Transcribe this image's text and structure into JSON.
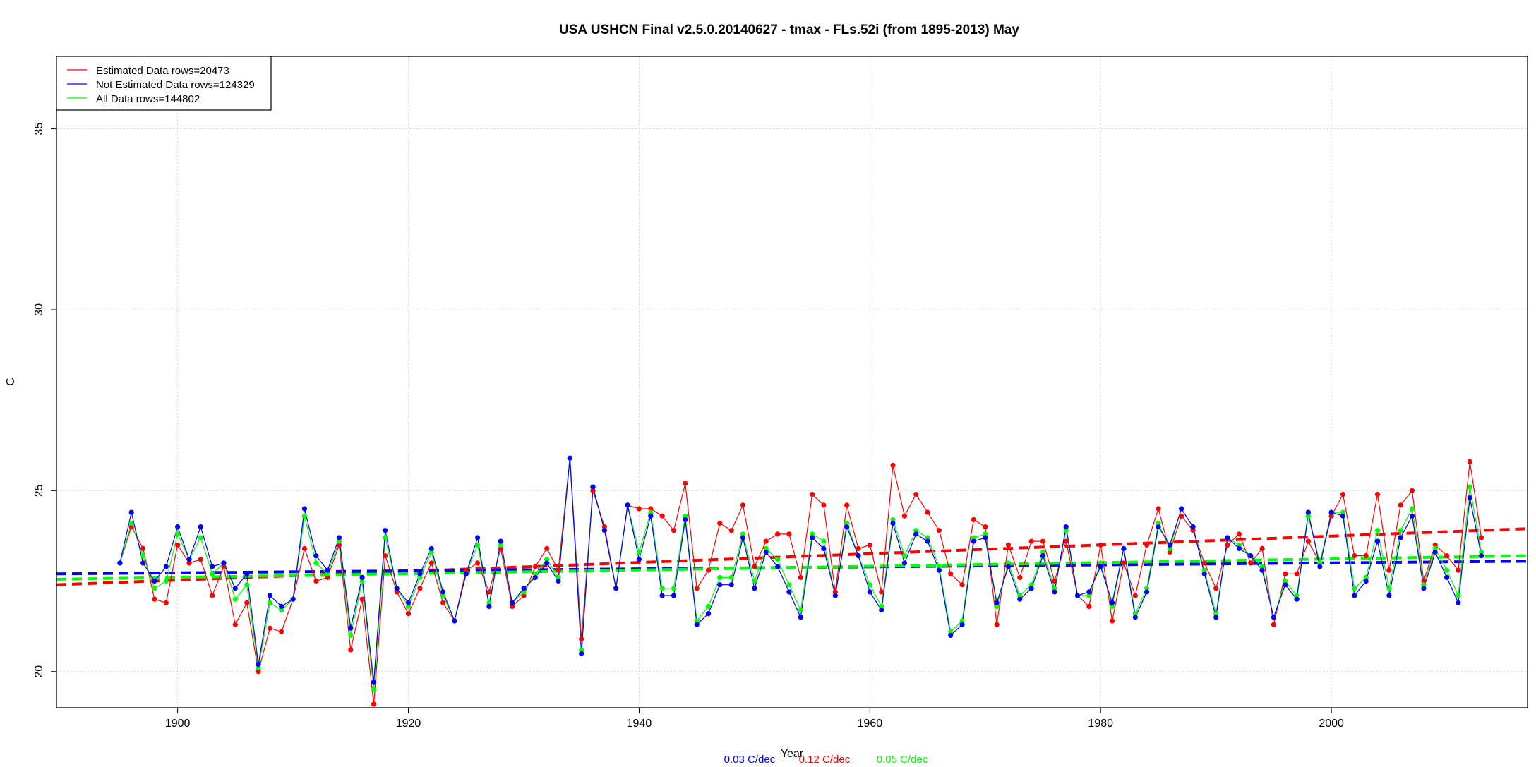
{
  "colors": {
    "estimated": "#ff0000",
    "not_estimated": "#0000ff",
    "all": "#00ff00",
    "grid": "#d3d3d3"
  },
  "chart_data": {
    "type": "line",
    "title": "USA USHCN Final v2.5.0.20140627 - tmax - FLs.52i (from 1895-2013) May",
    "xlabel": "Year",
    "ylabel": "C",
    "xlim": [
      1889.5,
      2017
    ],
    "ylim": [
      19,
      37
    ],
    "x_ticks": [
      1900,
      1920,
      1940,
      1960,
      1980,
      2000
    ],
    "y_ticks": [
      20,
      25,
      30,
      35
    ],
    "grid": true,
    "legend_position": "top-left",
    "x": [
      1895,
      1896,
      1897,
      1898,
      1899,
      1900,
      1901,
      1902,
      1903,
      1904,
      1905,
      1906,
      1907,
      1908,
      1909,
      1910,
      1911,
      1912,
      1913,
      1914,
      1915,
      1916,
      1917,
      1918,
      1919,
      1920,
      1921,
      1922,
      1923,
      1924,
      1925,
      1926,
      1927,
      1928,
      1929,
      1930,
      1931,
      1932,
      1933,
      1934,
      1935,
      1936,
      1937,
      1938,
      1939,
      1940,
      1941,
      1942,
      1943,
      1944,
      1945,
      1946,
      1947,
      1948,
      1949,
      1950,
      1951,
      1952,
      1953,
      1954,
      1955,
      1956,
      1957,
      1958,
      1959,
      1960,
      1961,
      1962,
      1963,
      1964,
      1965,
      1966,
      1967,
      1968,
      1969,
      1970,
      1971,
      1972,
      1973,
      1974,
      1975,
      1976,
      1977,
      1978,
      1979,
      1980,
      1981,
      1982,
      1983,
      1984,
      1985,
      1986,
      1987,
      1988,
      1989,
      1990,
      1991,
      1992,
      1993,
      1994,
      1995,
      1996,
      1997,
      1998,
      1999,
      2000,
      2001,
      2002,
      2003,
      2004,
      2005,
      2006,
      2007,
      2008,
      2009,
      2010,
      2011,
      2012,
      2013
    ],
    "series": [
      {
        "name": "Estimated Data rows=20473",
        "color": "#ff0000",
        "values": [
          23.0,
          24.0,
          23.4,
          22.0,
          21.9,
          23.5,
          23.0,
          23.1,
          22.1,
          22.9,
          21.3,
          21.9,
          20.0,
          21.2,
          21.1,
          22.0,
          23.4,
          22.5,
          22.6,
          23.5,
          20.6,
          22.0,
          19.1,
          23.2,
          22.2,
          21.6,
          22.3,
          23.0,
          21.9,
          21.4,
          22.8,
          23.0,
          22.2,
          23.4,
          21.8,
          22.1,
          22.9,
          23.4,
          22.8,
          25.9,
          20.9,
          25.0,
          24.0,
          22.3,
          24.6,
          24.5,
          24.5,
          24.3,
          23.9,
          25.2,
          22.3,
          22.8,
          24.1,
          23.9,
          24.6,
          22.9,
          23.6,
          23.8,
          23.8,
          22.6,
          24.9,
          24.6,
          22.2,
          24.6,
          23.4,
          23.5,
          22.2,
          25.7,
          24.3,
          24.9,
          24.4,
          23.9,
          22.7,
          22.4,
          24.2,
          24.0,
          21.3,
          23.5,
          22.6,
          23.6,
          23.6,
          22.5,
          23.6,
          22.1,
          21.8,
          23.5,
          21.4,
          23.0,
          22.1,
          23.5,
          24.5,
          23.3,
          24.3,
          23.9,
          23.0,
          22.3,
          23.5,
          23.8,
          23.0,
          23.4,
          21.3,
          22.7,
          22.7,
          23.6,
          23.0,
          24.3,
          24.9,
          23.2,
          23.2,
          24.9,
          22.8,
          24.6,
          25.0,
          22.5,
          23.5,
          23.2,
          22.8,
          25.8,
          23.7
        ]
      },
      {
        "name": "Not Estimated Data rows=124329",
        "color": "#0000ff",
        "values": [
          23.0,
          24.4,
          23.0,
          22.5,
          22.9,
          24.0,
          23.1,
          24.0,
          22.9,
          23.0,
          22.3,
          22.7,
          20.2,
          22.1,
          21.8,
          22.0,
          24.5,
          23.2,
          22.8,
          23.7,
          21.2,
          22.6,
          19.7,
          23.9,
          22.3,
          21.9,
          22.7,
          23.4,
          22.2,
          21.4,
          22.7,
          23.7,
          21.8,
          23.6,
          21.9,
          22.3,
          22.6,
          23.0,
          22.5,
          25.9,
          20.5,
          25.1,
          23.9,
          22.3,
          24.6,
          23.1,
          24.3,
          22.1,
          22.1,
          24.2,
          21.3,
          21.6,
          22.4,
          22.4,
          23.7,
          22.3,
          23.3,
          22.9,
          22.2,
          21.5,
          23.7,
          23.4,
          22.1,
          24.0,
          23.2,
          22.2,
          21.7,
          24.1,
          23.0,
          23.8,
          23.6,
          22.8,
          21.0,
          21.3,
          23.6,
          23.7,
          21.9,
          22.9,
          22.0,
          22.3,
          23.2,
          22.2,
          24.0,
          22.1,
          22.2,
          22.9,
          21.9,
          23.4,
          21.5,
          22.2,
          24.0,
          23.5,
          24.5,
          24.0,
          22.7,
          21.5,
          23.7,
          23.4,
          23.2,
          22.8,
          21.5,
          22.4,
          22.0,
          24.4,
          22.9,
          24.4,
          24.3,
          22.1,
          22.5,
          23.6,
          22.1,
          23.7,
          24.3,
          22.3,
          23.3,
          22.6,
          21.9,
          24.8,
          23.2
        ]
      },
      {
        "name": "All Data rows=144802",
        "color": "#00ff00",
        "values": [
          23.0,
          24.1,
          23.2,
          22.3,
          22.5,
          23.8,
          23.1,
          23.7,
          22.7,
          23.0,
          22.0,
          22.4,
          20.1,
          21.9,
          21.7,
          22.0,
          24.3,
          23.0,
          22.7,
          23.6,
          21.0,
          22.5,
          19.5,
          23.7,
          22.3,
          21.8,
          22.6,
          23.3,
          22.1,
          21.4,
          22.7,
          23.5,
          21.9,
          23.5,
          21.9,
          22.2,
          22.7,
          23.1,
          22.6,
          25.9,
          20.6,
          25.1,
          23.9,
          22.3,
          24.6,
          23.3,
          24.4,
          22.3,
          22.3,
          24.3,
          21.4,
          21.8,
          22.6,
          22.6,
          23.8,
          22.5,
          23.4,
          23.1,
          22.4,
          21.7,
          23.8,
          23.6,
          22.1,
          24.1,
          23.2,
          22.4,
          21.8,
          24.2,
          23.2,
          23.9,
          23.7,
          22.9,
          21.1,
          21.4,
          23.7,
          23.8,
          21.8,
          23.0,
          22.1,
          22.4,
          23.3,
          22.3,
          23.9,
          22.1,
          22.1,
          23.0,
          21.8,
          23.4,
          21.6,
          22.3,
          24.1,
          23.4,
          24.5,
          24.0,
          22.8,
          21.6,
          23.7,
          23.5,
          23.2,
          22.9,
          21.5,
          22.5,
          22.1,
          24.3,
          23.0,
          24.4,
          24.4,
          22.3,
          22.6,
          23.9,
          22.3,
          23.9,
          24.5,
          22.4,
          23.4,
          22.8,
          22.1,
          25.1,
          23.3
        ]
      }
    ],
    "trends": [
      {
        "name": "Not Estimated Data trend",
        "color": "#0000ff",
        "label": "0.03 C/dec",
        "x": [
          1889.5,
          2017
        ],
        "y": [
          22.7,
          23.05
        ]
      },
      {
        "name": "Estimated Data trend",
        "color": "#ff0000",
        "label": "0.12 C/dec",
        "x": [
          1889.5,
          2017
        ],
        "y": [
          22.4,
          23.95
        ]
      },
      {
        "name": "All Data trend",
        "color": "#00ff00",
        "label": "0.05 C/dec",
        "x": [
          1889.5,
          2017
        ],
        "y": [
          22.55,
          23.2
        ]
      }
    ]
  }
}
